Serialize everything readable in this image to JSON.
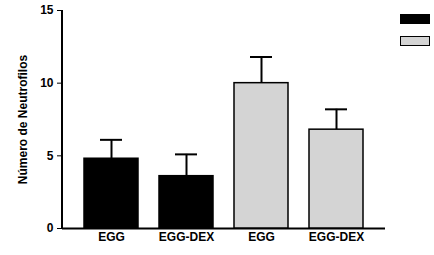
{
  "chart_data": {
    "type": "bar",
    "categories": [
      "EGG",
      "EGG-DEX",
      "EGG",
      "EGG-DEX"
    ],
    "series": [
      {
        "color": "#000000",
        "values": [
          4.8,
          3.6,
          null,
          null
        ],
        "errors": [
          1.3,
          1.5,
          null,
          null
        ]
      },
      {
        "color": "#d4d4d4",
        "values": [
          null,
          null,
          10.0,
          6.8
        ],
        "errors": [
          null,
          null,
          1.8,
          1.4
        ]
      }
    ],
    "y_label": "Número de Neutrofilos",
    "ylim": [
      0,
      15
    ],
    "yticks": [
      0,
      5,
      10,
      15
    ],
    "grid": false
  }
}
